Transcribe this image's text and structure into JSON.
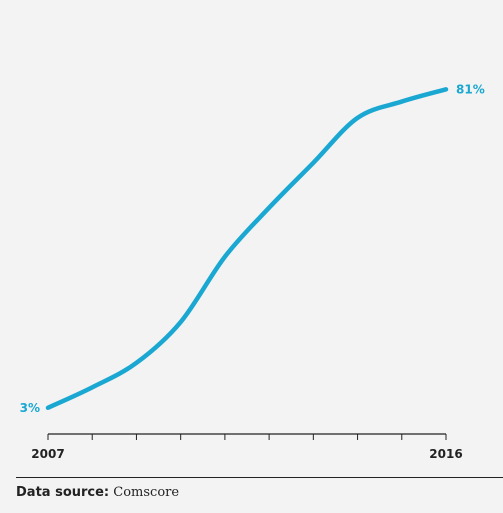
{
  "chart_data": {
    "type": "line",
    "x": [
      2007,
      2008,
      2009,
      2010,
      2011,
      2012,
      2013,
      2014,
      2015,
      2016
    ],
    "series": [
      {
        "values": [
          3,
          8,
          14,
          24,
          40,
          52,
          63,
          74,
          78,
          81
        ]
      }
    ],
    "data_labels": [
      "3%",
      "81%"
    ],
    "tick_labels": [
      "2007",
      "2016"
    ],
    "ylim": [
      0,
      85
    ],
    "grid": false,
    "line_color": "#1aa8d2",
    "label_color": "#1aa8d2",
    "axis_color": "#222222",
    "tick_label_color": "#222222"
  },
  "source": {
    "label": "Data source:",
    "value": "Comscore"
  }
}
